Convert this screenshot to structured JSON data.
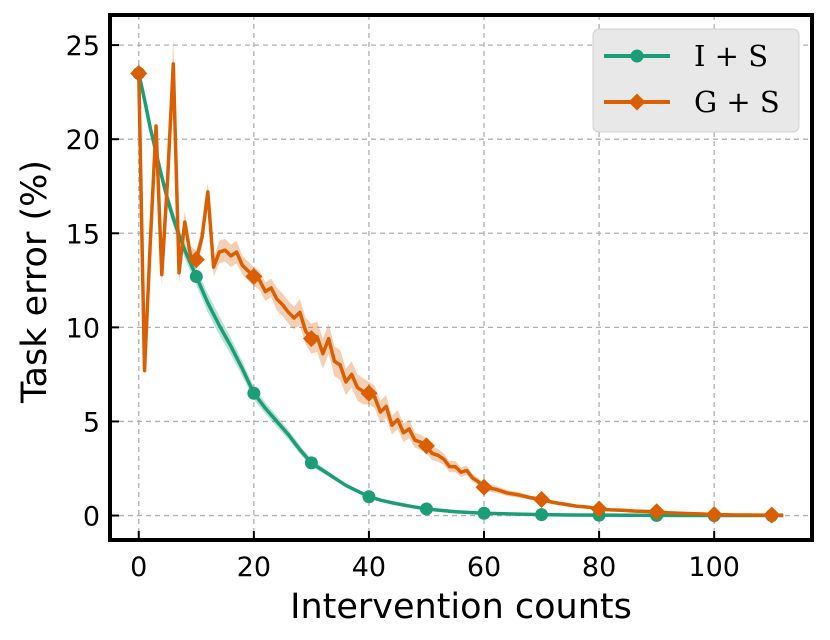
{
  "chart_data": {
    "type": "line",
    "title": "",
    "xlabel": "Intervention counts",
    "ylabel": "Task error (%)",
    "xlim": [
      -5,
      117
    ],
    "ylim": [
      -1.3,
      26.6
    ],
    "xticks": [
      0,
      20,
      40,
      60,
      80,
      100
    ],
    "yticks": [
      0,
      5,
      10,
      15,
      20,
      25
    ],
    "grid": true,
    "legend_position": "top-right",
    "colors": {
      "I + S": "#1b9e77",
      "G + S": "#d95f02"
    },
    "series": [
      {
        "name": "I + S",
        "marker": "circle",
        "marker_x": [
          0,
          10,
          20,
          30,
          40,
          50,
          60,
          70,
          80,
          90,
          100,
          110
        ],
        "marker_y": [
          23.5,
          12.7,
          6.5,
          2.8,
          1.0,
          0.35,
          0.12,
          0.05,
          0.02,
          0.01,
          0.0,
          0.0
        ],
        "x": [
          0,
          1,
          2,
          3,
          4,
          5,
          6,
          7,
          8,
          9,
          10,
          12,
          14,
          16,
          18,
          20,
          22,
          24,
          26,
          28,
          30,
          32,
          34,
          36,
          38,
          40,
          42,
          44,
          46,
          48,
          50,
          55,
          60,
          65,
          70,
          75,
          80,
          85,
          90,
          95,
          100,
          105,
          110,
          112
        ],
        "y": [
          23.5,
          22.1,
          20.6,
          19.3,
          18.0,
          16.8,
          15.8,
          14.9,
          14.1,
          13.4,
          12.7,
          11.3,
          10.1,
          9.0,
          7.8,
          6.5,
          5.7,
          5.0,
          4.3,
          3.5,
          2.8,
          2.4,
          2.0,
          1.6,
          1.3,
          1.0,
          0.82,
          0.68,
          0.56,
          0.45,
          0.35,
          0.2,
          0.12,
          0.08,
          0.05,
          0.03,
          0.02,
          0.015,
          0.01,
          0.005,
          0.0,
          0.0,
          0.0,
          0.0
        ],
        "band": [
          0.2,
          0.2,
          0.25,
          0.3,
          0.35,
          0.4,
          0.4,
          0.4,
          0.45,
          0.45,
          0.45,
          0.5,
          0.5,
          0.45,
          0.4,
          0.35,
          0.3,
          0.3,
          0.25,
          0.22,
          0.2,
          0.15,
          0.12,
          0.1,
          0.08,
          0.08,
          0.06,
          0.05,
          0.05,
          0.04,
          0.04,
          0.03,
          0.02,
          0.02,
          0.02,
          0.01,
          0.01,
          0.01,
          0.01,
          0.01,
          0.01,
          0.01,
          0.01,
          0.01
        ]
      },
      {
        "name": "G + S",
        "marker": "diamond",
        "marker_x": [
          0,
          10,
          20,
          30,
          40,
          50,
          60,
          70,
          80,
          90,
          100,
          110
        ],
        "marker_y": [
          23.5,
          13.6,
          12.7,
          9.4,
          6.5,
          3.7,
          1.5,
          0.85,
          0.35,
          0.2,
          0.05,
          0.02
        ],
        "x": [
          0,
          1,
          2,
          3,
          4,
          5,
          6,
          7,
          8,
          9,
          10,
          11,
          12,
          13,
          14,
          15,
          16,
          17,
          18,
          19,
          20,
          21,
          22,
          23,
          24,
          25,
          26,
          27,
          28,
          29,
          30,
          31,
          32,
          33,
          34,
          35,
          36,
          37,
          38,
          39,
          40,
          41,
          42,
          43,
          44,
          45,
          46,
          47,
          48,
          49,
          50,
          51,
          52,
          53,
          54,
          55,
          56,
          57,
          58,
          59,
          60,
          62,
          64,
          66,
          68,
          70,
          72,
          74,
          76,
          78,
          80,
          82,
          84,
          86,
          88,
          90,
          92,
          94,
          96,
          98,
          100,
          102,
          104,
          106,
          108,
          110,
          112
        ],
        "y": [
          23.5,
          7.7,
          14.5,
          20.7,
          12.8,
          17.8,
          24.0,
          12.9,
          15.6,
          13.8,
          13.6,
          14.8,
          17.2,
          13.2,
          14.0,
          14.1,
          13.8,
          14.0,
          13.3,
          13.0,
          12.7,
          12.5,
          11.9,
          12.1,
          11.5,
          11.2,
          10.8,
          10.5,
          10.8,
          9.8,
          9.4,
          9.5,
          8.6,
          9.4,
          8.2,
          8.0,
          7.1,
          7.5,
          6.8,
          6.6,
          6.5,
          6.3,
          5.5,
          5.8,
          4.8,
          5.1,
          4.4,
          4.6,
          4.0,
          3.9,
          3.7,
          3.3,
          3.2,
          3.0,
          2.6,
          2.6,
          2.3,
          2.4,
          2.0,
          1.8,
          1.5,
          1.4,
          1.2,
          1.1,
          0.95,
          0.85,
          0.7,
          0.6,
          0.5,
          0.45,
          0.35,
          0.3,
          0.28,
          0.24,
          0.22,
          0.2,
          0.15,
          0.12,
          0.1,
          0.08,
          0.05,
          0.04,
          0.03,
          0.03,
          0.02,
          0.02,
          0.02
        ],
        "band": [
          0.3,
          0.4,
          0.6,
          0.4,
          0.6,
          0.7,
          1.4,
          0.6,
          0.6,
          0.5,
          0.5,
          0.5,
          0.5,
          0.5,
          0.6,
          0.6,
          0.6,
          0.6,
          0.5,
          0.5,
          0.5,
          0.5,
          0.5,
          0.5,
          0.6,
          0.6,
          0.6,
          0.6,
          0.7,
          0.7,
          0.8,
          0.8,
          0.8,
          0.8,
          0.8,
          0.8,
          0.7,
          0.7,
          0.7,
          0.7,
          0.6,
          0.6,
          0.6,
          0.6,
          0.5,
          0.5,
          0.5,
          0.5,
          0.4,
          0.4,
          0.4,
          0.35,
          0.35,
          0.3,
          0.3,
          0.3,
          0.25,
          0.25,
          0.2,
          0.2,
          0.2,
          0.18,
          0.16,
          0.15,
          0.12,
          0.12,
          0.1,
          0.1,
          0.08,
          0.08,
          0.06,
          0.05,
          0.05,
          0.05,
          0.04,
          0.04,
          0.03,
          0.03,
          0.03,
          0.02,
          0.02,
          0.02,
          0.02,
          0.02,
          0.02,
          0.02,
          0.02
        ]
      }
    ]
  }
}
